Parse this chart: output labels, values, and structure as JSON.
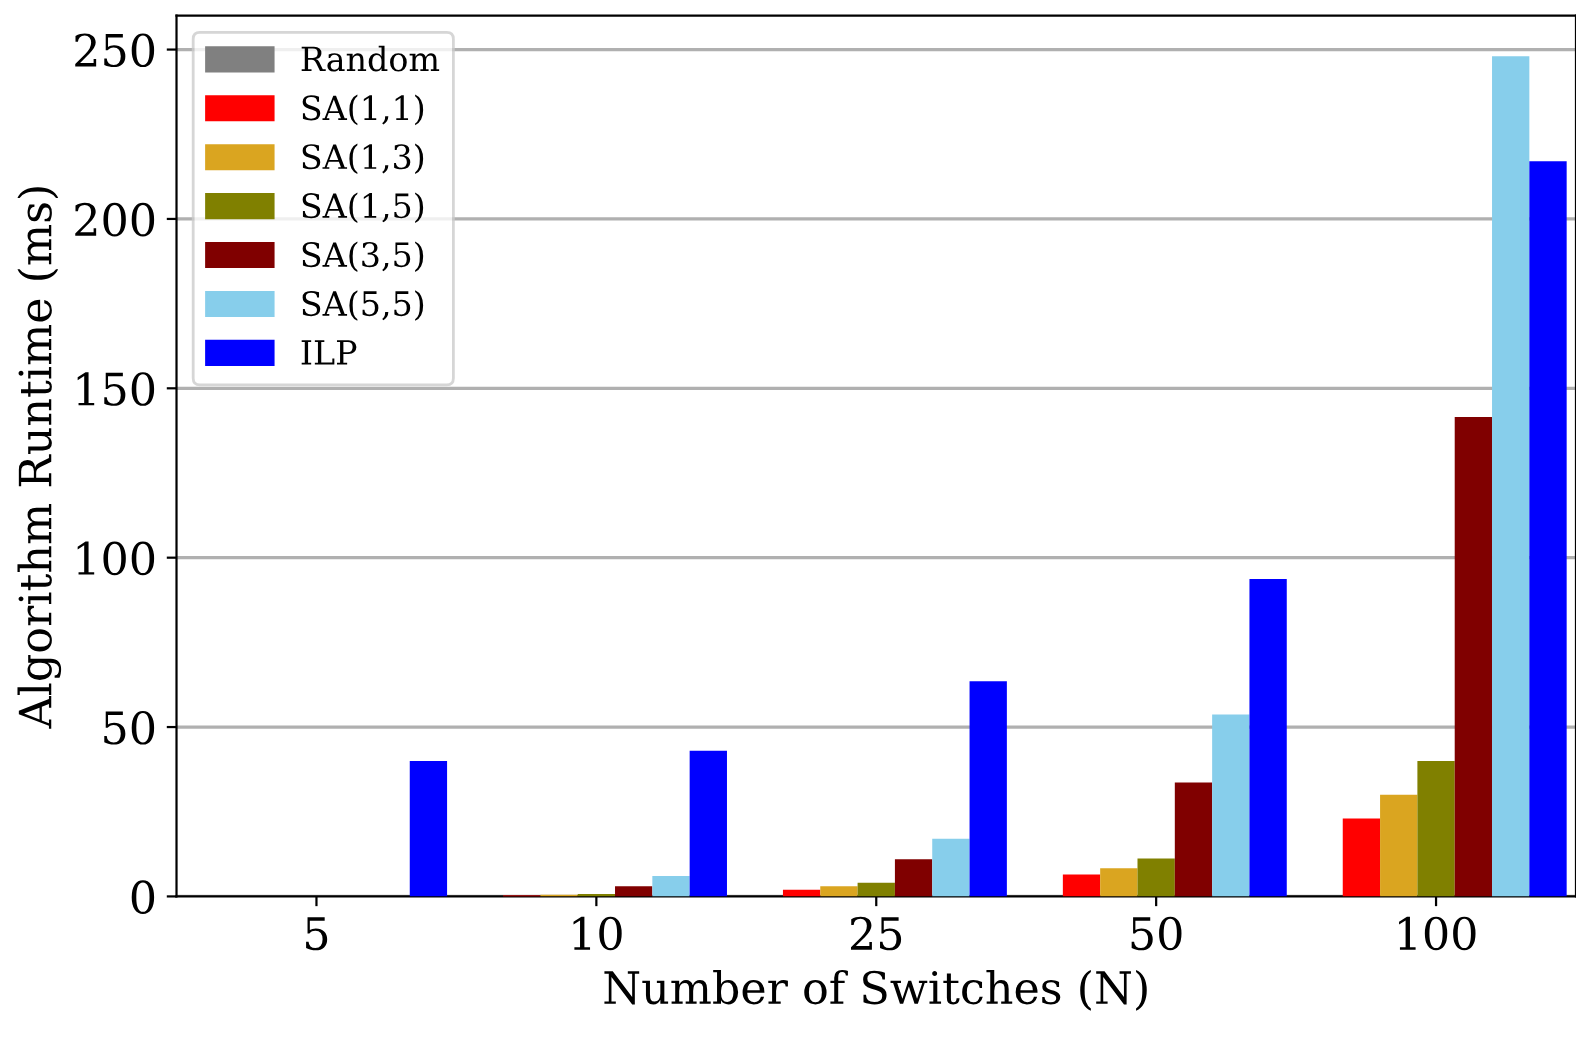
{
  "chart_data": {
    "type": "bar",
    "xlabel": "Number of Switches (N)",
    "ylabel": "Algorithm Runtime (ms)",
    "categories": [
      "5",
      "10",
      "25",
      "50",
      "100"
    ],
    "series": [
      {
        "name": "Random",
        "color": "#808080",
        "values": [
          0,
          0,
          0,
          0,
          0
        ]
      },
      {
        "name": "SA(1,1)",
        "color": "#ff0000",
        "values": [
          0,
          0.3,
          2,
          6.5,
          23
        ]
      },
      {
        "name": "SA(1,3)",
        "color": "#daa520",
        "values": [
          0,
          0.5,
          3,
          8.3,
          30
        ]
      },
      {
        "name": "SA(1,5)",
        "color": "#808000",
        "values": [
          0,
          0.7,
          4,
          11.2,
          40
        ]
      },
      {
        "name": "SA(3,5)",
        "color": "#800000",
        "values": [
          0,
          3,
          11,
          33.6,
          141.5
        ]
      },
      {
        "name": "SA(5,5)",
        "color": "#87ceeb",
        "values": [
          0,
          6,
          17,
          53.7,
          248
        ]
      },
      {
        "name": "ILP",
        "color": "#0000ff",
        "values": [
          40,
          43,
          63.5,
          93.7,
          217
        ]
      }
    ],
    "ylim": [
      0,
      260
    ],
    "yticks": [
      0,
      50,
      100,
      150,
      200,
      250
    ],
    "grid": "y",
    "legend": "top left"
  }
}
